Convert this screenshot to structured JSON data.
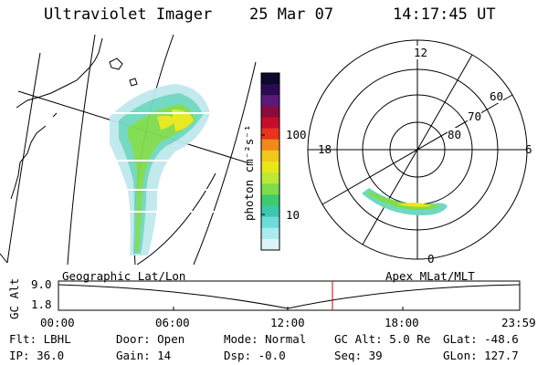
{
  "header": {
    "instrument": "Ultraviolet Imager",
    "date": "25 Mar 07",
    "time": "14:17:45 UT"
  },
  "geo_panel": {
    "label": "Geographic Lat/Lon"
  },
  "colorbar": {
    "unit_label": "photon cm⁻²s⁻¹",
    "ticks": [
      "100",
      "10"
    ],
    "colors": [
      "#0a0a2a",
      "#2b0b52",
      "#5a1a7a",
      "#8a0c3c",
      "#c80c2c",
      "#e8341c",
      "#f08a1c",
      "#f0c81c",
      "#e8e818",
      "#bde838",
      "#7fdc4c",
      "#3ccc6c",
      "#3cc8b0",
      "#6cdcd8",
      "#a8ecf0",
      "#dcf4f8"
    ]
  },
  "polar_panel": {
    "label": "Apex MLat/MLT",
    "mlt_labels": [
      "12",
      "18",
      "6",
      "0"
    ],
    "lat_labels": [
      "60",
      "70",
      "80"
    ]
  },
  "altitude_plot": {
    "ylabel": "GC Alt",
    "ytick_top": "9.0",
    "ytick_bottom": "1.8",
    "xticks": [
      "00:00",
      "06:00",
      "12:00",
      "18:00",
      "23:59"
    ],
    "marker_color": "#cc0000"
  },
  "status": {
    "filter": "Flt: LBHL",
    "door": "Door: Open",
    "mode": "Mode: Normal",
    "gc_alt": "GC Alt: 5.0 Re",
    "glat": "GLat: -48.6",
    "ip": "IP: 36.0",
    "gain": "Gain: 14",
    "dsp": "Dsp:   -0.0",
    "seq": "Seq: 39",
    "glon": "GLon: 127.7"
  }
}
